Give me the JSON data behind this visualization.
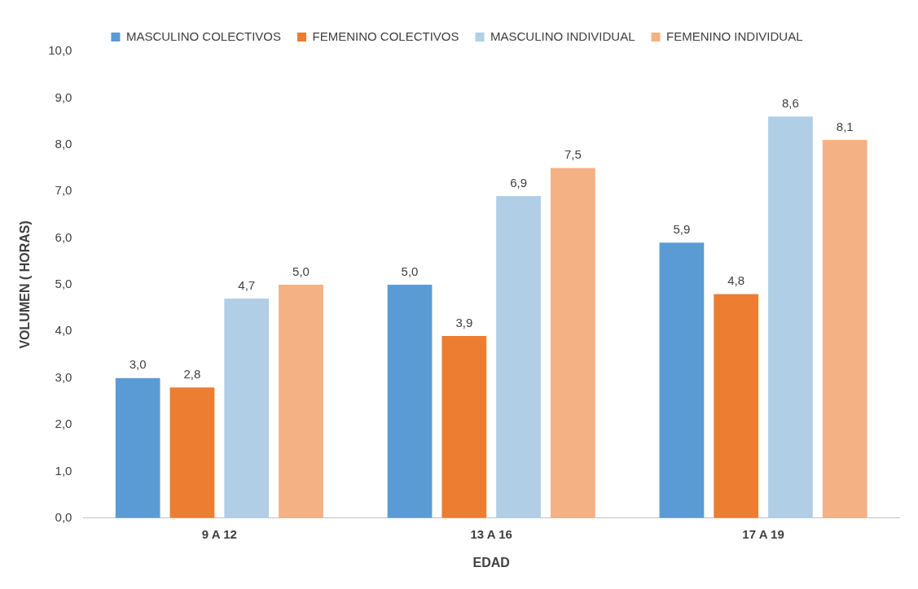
{
  "chart_data": {
    "type": "bar",
    "xlabel": "EDAD",
    "ylabel": "VOLUMEN ( HORAS)",
    "categories": [
      "9 A 12",
      "13 A 16",
      "17 A 19"
    ],
    "series": [
      {
        "name": "MASCULINO COLECTIVOS",
        "color": "#5b9bd5",
        "values": [
          3.0,
          5.0,
          5.9
        ],
        "value_labels": [
          "3,0",
          "5,0",
          "5,9"
        ]
      },
      {
        "name": "FEMENINO COLECTIVOS",
        "color": "#ed7d31",
        "values": [
          2.8,
          3.9,
          4.8
        ],
        "value_labels": [
          "2,8",
          "3,9",
          "4,8"
        ]
      },
      {
        "name": "MASCULINO INDIVIDUAL",
        "color": "#b0cfe6",
        "values": [
          4.7,
          6.9,
          8.6
        ],
        "value_labels": [
          "4,7",
          "6,9",
          "8,6"
        ]
      },
      {
        "name": "FEMENINO INDIVIDUAL",
        "color": "#f4b183",
        "values": [
          5.0,
          7.5,
          8.1
        ],
        "value_labels": [
          "5,0",
          "7,5",
          "8,1"
        ]
      }
    ],
    "ylim": [
      0,
      10
    ],
    "yticks": [
      {
        "value": 0,
        "label": "0,0"
      },
      {
        "value": 1,
        "label": "1,0"
      },
      {
        "value": 2,
        "label": "2,0"
      },
      {
        "value": 3,
        "label": "3,0"
      },
      {
        "value": 4,
        "label": "4,0"
      },
      {
        "value": 5,
        "label": "5,0"
      },
      {
        "value": 6,
        "label": "6,0"
      },
      {
        "value": 7,
        "label": "7,0"
      },
      {
        "value": 8,
        "label": "8,0"
      },
      {
        "value": 9,
        "label": "9,0"
      },
      {
        "value": 10,
        "label": "10,0"
      }
    ],
    "grid": false,
    "legend": "top"
  }
}
